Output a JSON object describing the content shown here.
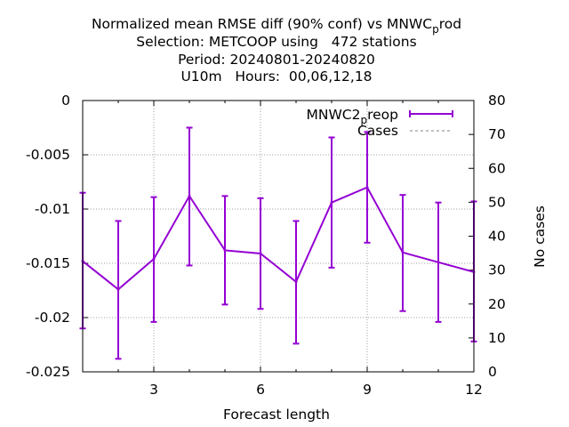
{
  "chart_data": {
    "type": "line",
    "title": {
      "line1_main": "Normalized mean RMSE diff (90% conf) vs MNWC",
      "line1_sub": "p",
      "line1_tail": "rod",
      "line2": "Selection: METCOOP using   472 stations",
      "line3": "Period: 20240801-20240820",
      "line4": "U10m   Hours:  00,06,12,18"
    },
    "xlabel": "Forecast length",
    "ylabel_right": "No cases",
    "xlim": [
      1,
      12
    ],
    "ylim": [
      -0.025,
      0
    ],
    "y2lim": [
      0,
      80
    ],
    "x_ticks": [
      3,
      6,
      9,
      12
    ],
    "y_ticks": [
      0,
      -0.005,
      -0.01,
      -0.015,
      -0.02,
      -0.025
    ],
    "y_tick_labels": [
      "0",
      "-0.005",
      "-0.01",
      "-0.015",
      "-0.02",
      "-0.025"
    ],
    "y2_ticks": [
      0,
      10,
      20,
      30,
      40,
      50,
      60,
      70,
      80
    ],
    "grid": true,
    "legend_position": "top-right",
    "series": [
      {
        "name_main": "MNWC2",
        "name_sub": "p",
        "name_tail": "reop",
        "color": "#9400d3",
        "x": [
          1,
          2,
          3,
          4,
          5,
          6,
          7,
          8,
          9,
          10,
          11,
          12
        ],
        "y": [
          -0.0148,
          -0.0174,
          -0.0146,
          -0.0088,
          -0.0138,
          -0.0141,
          -0.0167,
          -0.0094,
          -0.008,
          -0.014,
          -0.0149,
          -0.0158
        ],
        "y_low": [
          -0.021,
          -0.0238,
          -0.0204,
          -0.0152,
          -0.0188,
          -0.0192,
          -0.0224,
          -0.0154,
          -0.0131,
          -0.0194,
          -0.0204,
          -0.0222
        ],
        "y_high": [
          -0.0085,
          -0.0111,
          -0.0089,
          -0.0025,
          -0.0088,
          -0.009,
          -0.0111,
          -0.0034,
          -0.0029,
          -0.0087,
          -0.0094,
          -0.0093
        ]
      },
      {
        "name": "Cases",
        "color": "#808080",
        "axis": "right",
        "x": [
          1,
          2,
          3,
          4,
          5,
          6,
          7,
          8,
          9,
          10,
          11,
          12
        ],
        "y": [
          80,
          80,
          80,
          80,
          80,
          80,
          80,
          80,
          80,
          80,
          80,
          80
        ]
      }
    ]
  }
}
